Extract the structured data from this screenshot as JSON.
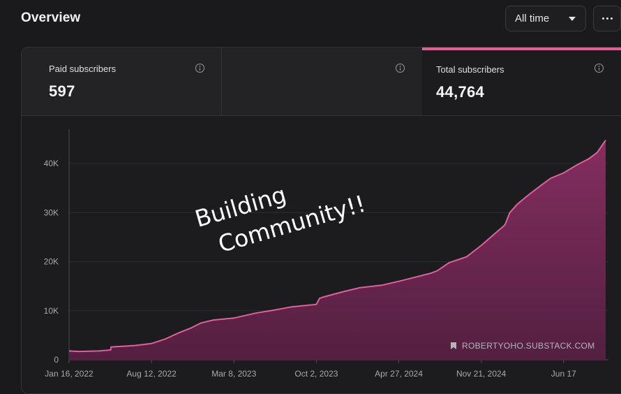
{
  "header": {
    "title": "Overview",
    "range_label": "All time"
  },
  "metrics": [
    {
      "label": "Paid subscribers",
      "value": "597"
    },
    {
      "label": "",
      "value": ""
    },
    {
      "label": "Total subscribers",
      "value": "44,764"
    }
  ],
  "overlay": {
    "line1": "Building",
    "line2": "Community!!"
  },
  "colors": {
    "accent": "#e85c9c",
    "area": "#7a2a58",
    "background": "#1a1a1c"
  },
  "icons": {
    "more": "more-horizontal-icon",
    "info": "info-icon",
    "caret": "caret-down-icon",
    "watermark": "bookmark-icon"
  },
  "chart_data": {
    "type": "area",
    "series": [
      {
        "name": "Total subscribers",
        "x": [
          "2022-01-16",
          "2022-02-10",
          "2022-04-01",
          "2022-05-01",
          "2022-05-02",
          "2022-07-01",
          "2022-08-12",
          "2022-09-15",
          "2022-10-20",
          "2022-11-20",
          "2022-12-15",
          "2023-01-15",
          "2023-03-08",
          "2023-05-01",
          "2023-06-15",
          "2023-08-01",
          "2023-10-02",
          "2023-10-10",
          "2023-10-20",
          "2023-12-10",
          "2024-01-20",
          "2024-03-15",
          "2024-04-27",
          "2024-06-01",
          "2024-07-15",
          "2024-08-01",
          "2024-09-01",
          "2024-10-15",
          "2024-11-21",
          "2024-12-15",
          "2025-01-20",
          "2025-02-01",
          "2025-02-20",
          "2025-03-20",
          "2025-04-20",
          "2025-05-15",
          "2025-06-17",
          "2025-07-20",
          "2025-08-20",
          "2025-09-10",
          "2025-10-01"
        ],
        "y": [
          1800,
          1700,
          1800,
          2000,
          2600,
          2900,
          3300,
          4200,
          5500,
          6500,
          7500,
          8100,
          8500,
          9500,
          10100,
          10800,
          11300,
          12500,
          12800,
          13900,
          14700,
          15200,
          16000,
          16700,
          17600,
          18100,
          19800,
          21000,
          23300,
          25000,
          27500,
          30000,
          31700,
          33600,
          35500,
          37000,
          38100,
          39700,
          41000,
          42300,
          44764
        ]
      }
    ],
    "x_ticks": [
      "Jan 16, 2022",
      "Aug 12, 2022",
      "Mar 8, 2023",
      "Oct 2, 2023",
      "Apr 27, 2024",
      "Nov 21, 2024",
      "Jun 17"
    ],
    "x_tick_dates": [
      "2022-01-16",
      "2022-08-12",
      "2023-03-08",
      "2023-10-02",
      "2024-04-27",
      "2024-11-21",
      "2025-06-17"
    ],
    "y_ticks": [
      "0",
      "10K",
      "20K",
      "30K",
      "40K"
    ],
    "y_tick_values": [
      0,
      10000,
      20000,
      30000,
      40000
    ],
    "ylim": [
      0,
      47000
    ],
    "xlim": [
      "2022-01-16",
      "2025-10-01"
    ],
    "grid": true,
    "watermark": "ROBERTYOHO.SUBSTACK.COM"
  }
}
